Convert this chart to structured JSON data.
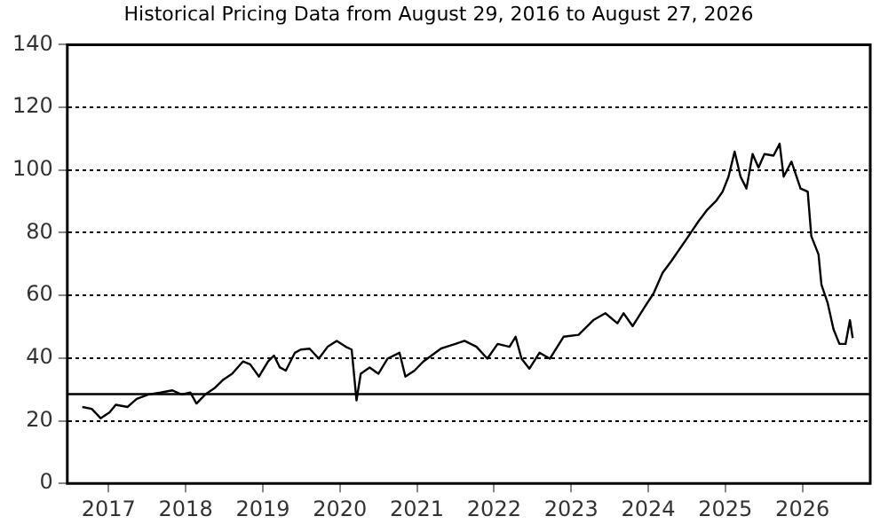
{
  "chart_data": {
    "type": "line",
    "title": "Historical Pricing Data from August 29, 2016 to August 27, 2026",
    "x": [
      "2016-08-29",
      "2016-10-13",
      "2016-11-24",
      "2017-01-06",
      "2017-02-04",
      "2017-04-01",
      "2017-05-14",
      "2017-07-09",
      "2017-09-04",
      "2017-10-30",
      "2017-12-12",
      "2018-01-23",
      "2018-02-21",
      "2018-04-04",
      "2018-05-16",
      "2018-06-28",
      "2018-08-09",
      "2018-09-29",
      "2018-11-02",
      "2018-12-14",
      "2019-01-26",
      "2019-02-23",
      "2019-03-23",
      "2019-04-20",
      "2019-06-02",
      "2019-06-30",
      "2019-08-11",
      "2019-09-23",
      "2019-11-04",
      "2019-12-17",
      "2020-01-29",
      "2020-02-26",
      "2020-03-20",
      "2020-04-09",
      "2020-05-21",
      "2020-07-02",
      "2020-08-14",
      "2020-10-10",
      "2020-11-07",
      "2020-12-20",
      "2021-01-31",
      "2021-04-24",
      "2021-08-14",
      "2021-10-10",
      "2021-11-30",
      "2022-01-18",
      "2022-03-15",
      "2022-04-13",
      "2022-05-11",
      "2022-06-17",
      "2022-08-04",
      "2022-09-22",
      "2022-11-26",
      "2023-02-05",
      "2023-04-16",
      "2023-06-12",
      "2023-08-08",
      "2023-09-06",
      "2023-10-19",
      "2023-12-14",
      "2024-01-26",
      "2024-03-09",
      "2024-04-20",
      "2024-06-30",
      "2024-08-26",
      "2024-10-08",
      "2024-11-20",
      "2024-12-19",
      "2025-01-16",
      "2025-02-14",
      "2025-03-14",
      "2025-04-11",
      "2025-05-10",
      "2025-06-07",
      "2025-07-05",
      "2025-08-17",
      "2025-09-15",
      "2025-10-04",
      "2025-11-10",
      "2025-12-23",
      "2026-01-26",
      "2026-02-12",
      "2026-03-18",
      "2026-04-01",
      "2026-04-30",
      "2026-05-28",
      "2026-06-25",
      "2026-07-24",
      "2026-08-14",
      "2026-08-27"
    ],
    "series": [
      {
        "color": "#000000",
        "values": [
          24.4,
          23.8,
          20.8,
          22.7,
          25.1,
          24.4,
          27,
          28.4,
          29,
          29.7,
          28.4,
          29,
          25.5,
          28.4,
          30.3,
          33.1,
          35,
          38.9,
          38,
          34.1,
          38.9,
          40.8,
          37,
          36,
          41.7,
          42.7,
          43,
          39.8,
          43.6,
          45.5,
          43.6,
          42.7,
          26.5,
          35,
          37,
          35,
          39.8,
          41.7,
          34.1,
          36,
          38.9,
          43,
          45.5,
          43.6,
          39.8,
          44.5,
          43.6,
          46.8,
          39.8,
          36.6,
          41.7,
          39.8,
          46.8,
          47.4,
          52.1,
          54.3,
          51.1,
          54.3,
          50.2,
          56.2,
          60.6,
          67.2,
          71,
          77.9,
          83.6,
          87.4,
          90.3,
          93.1,
          97.9,
          105.9,
          97.9,
          94.1,
          105.1,
          100.8,
          105.1,
          104.6,
          108.4,
          97.9,
          102.7,
          94.1,
          93.1,
          78.9,
          73.1,
          63.4,
          57.7,
          49.2,
          44.5,
          44.5,
          52.1,
          46.4
        ]
      }
    ],
    "xlim": [
      "2016-06-19",
      "2026-11-18"
    ],
    "xticks": [
      "2017",
      "2018",
      "2019",
      "2020",
      "2021",
      "2022",
      "2023",
      "2024",
      "2025",
      "2026"
    ],
    "ylim": [
      0,
      140
    ],
    "yticks": [
      0,
      20,
      40,
      60,
      80,
      100,
      120,
      140
    ],
    "grid": "y",
    "legend": false,
    "marker": "none",
    "line_style": "solid",
    "ref_lines": [
      {
        "axis": "y",
        "value": 28.5,
        "color": "#000000"
      }
    ]
  }
}
